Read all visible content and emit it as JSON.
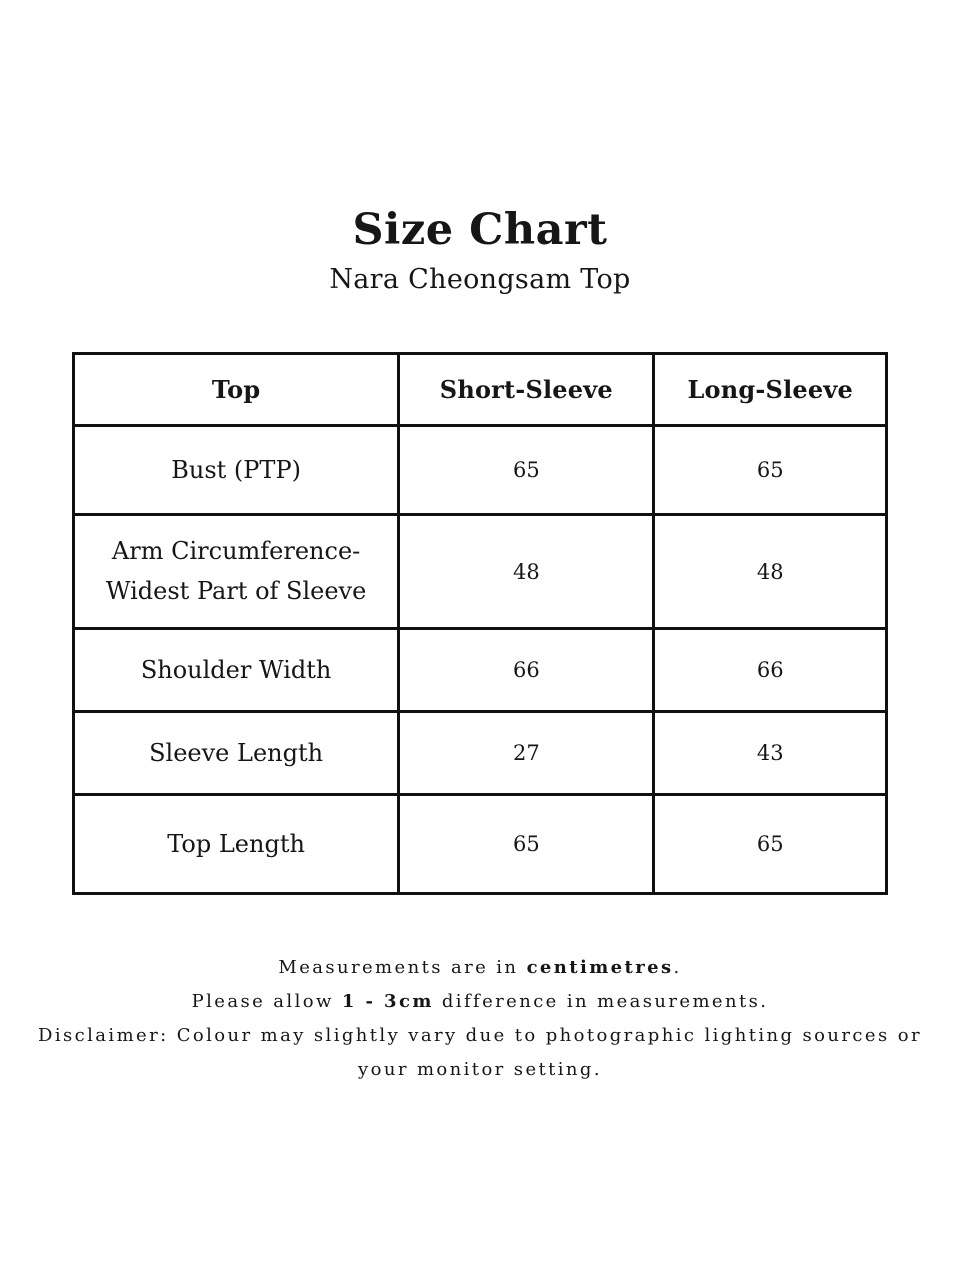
{
  "page": {
    "title": "Size Chart",
    "subtitle": "Nara Cheongsam Top"
  },
  "table": {
    "headers": [
      "Top",
      "Short-Sleeve",
      "Long-Sleeve"
    ],
    "rows": [
      {
        "label": "Bust (PTP)",
        "short_sleeve": "65",
        "long_sleeve": "65"
      },
      {
        "label": "Arm Circumference-\nWidest Part of Sleeve",
        "short_sleeve": "48",
        "long_sleeve": "48"
      },
      {
        "label": "Shoulder Width",
        "short_sleeve": "66",
        "long_sleeve": "66"
      },
      {
        "label": "Sleeve Length",
        "short_sleeve": "27",
        "long_sleeve": "43"
      },
      {
        "label": "Top Length",
        "short_sleeve": "65",
        "long_sleeve": "65"
      }
    ]
  },
  "footer": {
    "units_note": {
      "pre": "Measurements are in ",
      "bold": "centimetres",
      "post": "."
    },
    "tolerance_note": {
      "pre": "Please allow ",
      "bold": "1 - 3cm",
      "post": " difference in measurements."
    },
    "disclaimer_note": "Disclaimer: Colour may slightly vary due to photographic lighting sources or your monitor setting."
  },
  "colors": {
    "background": "#ffffff",
    "text": "#161616",
    "table_border": "#111111"
  }
}
